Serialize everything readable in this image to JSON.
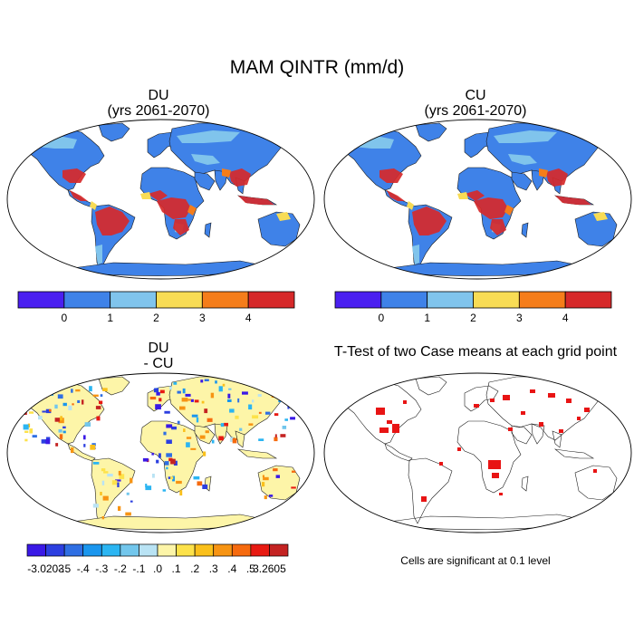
{
  "title": "MAM QINTR (mm/d)",
  "panels": [
    {
      "line1": "DU",
      "line2": "(yrs 2061-2070)"
    },
    {
      "line1": "CU",
      "line2": "(yrs 2061-2070)"
    },
    {
      "line1": "DU",
      "line2": "- CU"
    },
    {
      "line1": "T-Test of two Case means at each grid point"
    }
  ],
  "abs_colorbar": {
    "colors": [
      "#4a1ff0",
      "#3f82e8",
      "#80c4ec",
      "#f8dc55",
      "#f57d1a",
      "#d6292a"
    ],
    "labels": [
      "0",
      "1",
      "2",
      "3",
      "4"
    ]
  },
  "diff_colorbar": {
    "colors": [
      "#3a19e6",
      "#2c3fe0",
      "#2f6fe3",
      "#1a96ee",
      "#2bb5f2",
      "#72c6ec",
      "#b9e3f4",
      "#fdf5a8",
      "#fde24a",
      "#fac01b",
      "#f79413",
      "#f66a0e",
      "#e81a12",
      "#c42322"
    ],
    "labels": [
      "-3.0203",
      "-.5",
      "-.4",
      "-.3",
      "-.2",
      "-.1",
      ".0",
      ".1",
      ".2",
      ".3",
      ".4",
      ".5",
      "3.2605"
    ]
  },
  "significance_color": "#e81414",
  "significance_note": "Cells are significant at 0.1 level"
}
